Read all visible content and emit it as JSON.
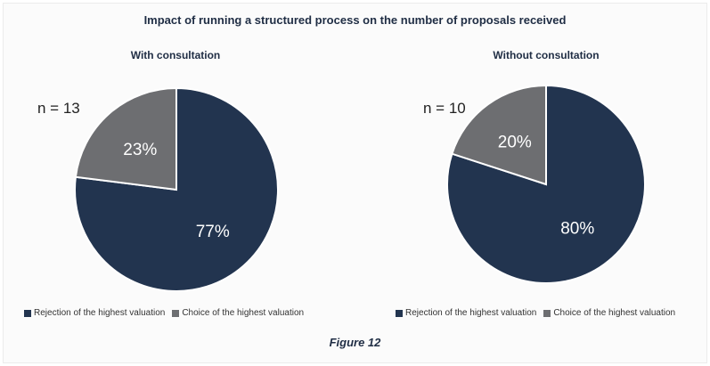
{
  "title": "Impact of running a structured process on the number of proposals received",
  "caption": "Figure 12",
  "colors": {
    "rejection": "#22344f",
    "choice": "#6d6e71"
  },
  "chart_data": [
    {
      "type": "pie",
      "title": "With consultation",
      "n_label": "n = 13",
      "slices": [
        {
          "name": "Rejection of the highest valuation",
          "value": 77,
          "label": "77%"
        },
        {
          "name": "Choice of the highest valuation",
          "value": 23,
          "label": "23%"
        }
      ],
      "legend": [
        "Rejection of the highest valuation",
        "Choice of the highest valuation"
      ],
      "legend_position": "bottom"
    },
    {
      "type": "pie",
      "title": "Without consultation",
      "n_label": "n = 10",
      "slices": [
        {
          "name": "Rejection of the highest valuation",
          "value": 80,
          "label": "80%"
        },
        {
          "name": "Choice of the highest valuation",
          "value": 20,
          "label": "20%"
        }
      ],
      "legend": [
        "Rejection of the highest valuation",
        "Choice of the highest valuation"
      ],
      "legend_position": "bottom"
    }
  ]
}
